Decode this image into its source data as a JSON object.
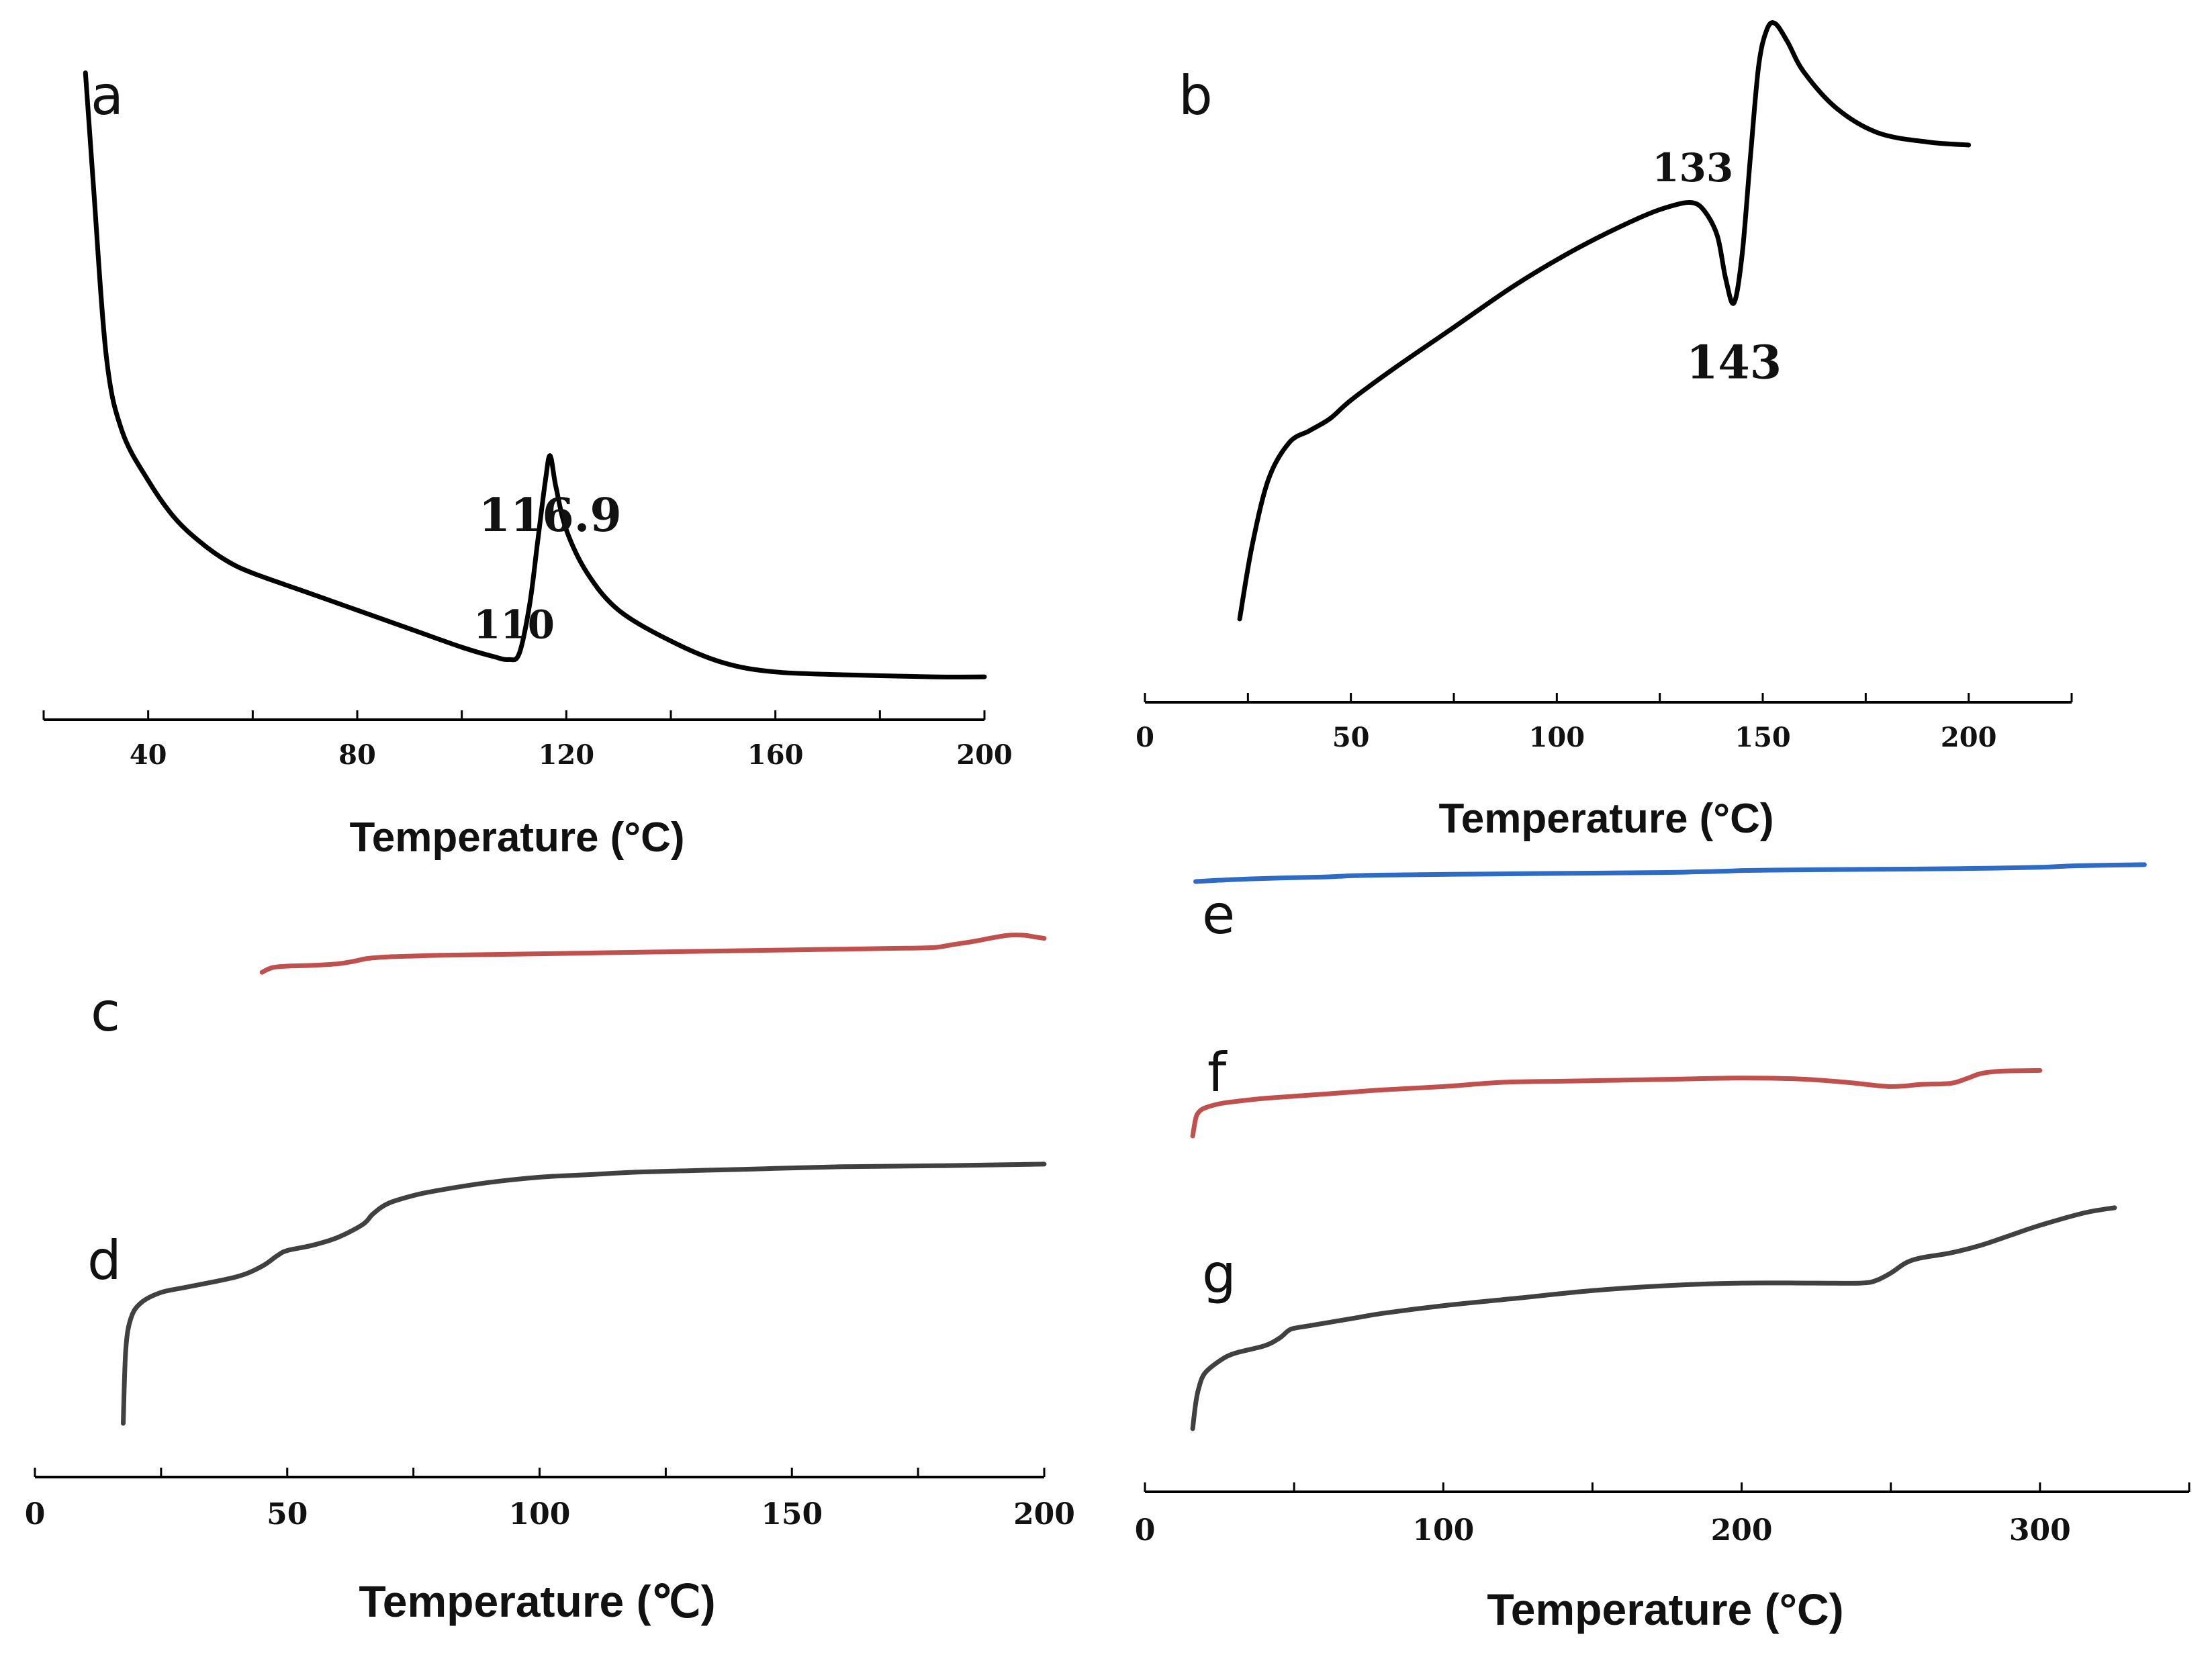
{
  "chart_data": [
    {
      "id": "a",
      "type": "line",
      "panel_label": "a",
      "xlabel": "Temperature (°C)",
      "xlim": [
        20,
        200
      ],
      "xticks": [
        "40",
        "80",
        "120",
        "160",
        "200"
      ],
      "tick_values": [
        40,
        80,
        120,
        160,
        200
      ],
      "minor_step": 20,
      "ylim": [
        0,
        100
      ],
      "series": [
        {
          "name": "a",
          "color": "#000000",
          "x": [
            28,
            29.5,
            32,
            35,
            40,
            45,
            50,
            55,
            60,
            70,
            80,
            90,
            100,
            106,
            109,
            111,
            113,
            114.5,
            116,
            116.9,
            118,
            120,
            124,
            130,
            140,
            150,
            160,
            175,
            190,
            200
          ],
          "y": [
            2,
            20,
            48,
            60,
            68,
            74,
            78,
            81,
            83,
            86,
            89,
            92,
            95,
            96.5,
            97,
            96,
            88,
            78,
            68,
            64,
            69,
            76,
            83,
            89,
            94,
            97.5,
            99,
            99.5,
            99.8,
            99.8
          ]
        }
      ],
      "annotations": [
        {
          "x": 110,
          "y": 97,
          "text": "110",
          "pos": "above"
        },
        {
          "x": 116.9,
          "y": 64,
          "text": "116.9",
          "pos": "below"
        }
      ]
    },
    {
      "id": "b",
      "type": "line",
      "panel_label": "b",
      "xlabel": "Temperature (°C)",
      "xlim": [
        0,
        225
      ],
      "xticks": [
        "0",
        "50",
        "100",
        "150",
        "200"
      ],
      "tick_values": [
        0,
        50,
        100,
        150,
        200
      ],
      "minor_step": 25,
      "ylim": [
        0,
        100
      ],
      "series": [
        {
          "name": "b",
          "color": "#000000",
          "x": [
            23,
            26,
            30,
            35,
            40,
            45,
            50,
            60,
            75,
            90,
            105,
            120,
            128,
            133,
            136,
            139,
            141,
            143,
            145,
            147,
            149,
            151,
            153,
            156,
            160,
            168,
            178,
            190,
            200
          ],
          "y": [
            2,
            14,
            25,
            31,
            33,
            35,
            38,
            43,
            50,
            57,
            63,
            68,
            70,
            70.5,
            69,
            65,
            58,
            54,
            62,
            78,
            93,
            99,
            100,
            97,
            92,
            86,
            82,
            80.5,
            80
          ]
        }
      ],
      "annotations": [
        {
          "x": 133,
          "y": 70.5,
          "text": "133",
          "pos": "above"
        },
        {
          "x": 143,
          "y": 54,
          "text": "143",
          "pos": "below"
        }
      ]
    },
    {
      "id": "cd",
      "type": "line",
      "xlabel": "Temperature (℃)",
      "xlim": [
        0,
        200
      ],
      "xticks": [
        "0",
        "50",
        "100",
        "150",
        "200"
      ],
      "tick_values": [
        0,
        50,
        100,
        150,
        200
      ],
      "minor_step": 25,
      "ylim": [
        0,
        100
      ],
      "panel_labels": [
        {
          "text": "c",
          "series": "c"
        },
        {
          "text": "d",
          "series": "d"
        }
      ],
      "series": [
        {
          "name": "c",
          "color": "#c0504d",
          "x": [
            45,
            47,
            50,
            55,
            60,
            63,
            66,
            70,
            75,
            80,
            90,
            100,
            110,
            120,
            130,
            140,
            150,
            160,
            170,
            178,
            182,
            186,
            190,
            193,
            196,
            198,
            200
          ],
          "y": [
            66,
            69,
            70,
            70.5,
            71.5,
            73,
            75,
            76,
            76.5,
            77,
            77.5,
            78,
            78.5,
            79,
            79.5,
            80,
            80.5,
            81,
            81.5,
            82,
            84,
            86,
            88.5,
            90,
            90,
            89,
            88
          ]
        },
        {
          "name": "d",
          "color": "#404040",
          "x": [
            17.5,
            18,
            19,
            21,
            25,
            30,
            40,
            45,
            48,
            50,
            55,
            60,
            65,
            67,
            70,
            75,
            80,
            90,
            100,
            110,
            120,
            140,
            160,
            180,
            200
          ],
          "y": [
            0,
            14,
            20,
            23,
            25,
            26,
            28,
            30,
            32,
            33,
            34,
            35.5,
            38,
            40,
            42,
            43.5,
            44.5,
            46,
            47,
            47.5,
            48,
            48.5,
            49,
            49.2,
            49.5
          ]
        }
      ]
    },
    {
      "id": "efg",
      "type": "line",
      "xlabel": "Temperature (°C)",
      "xlim": [
        0,
        350
      ],
      "xticks": [
        "0",
        "100",
        "200",
        "300"
      ],
      "tick_values": [
        0,
        100,
        200,
        300
      ],
      "minor_step": 50,
      "ylim": [
        0,
        100
      ],
      "panel_labels": [
        {
          "text": "e",
          "series": "e"
        },
        {
          "text": "f",
          "series": "f"
        },
        {
          "text": "g",
          "series": "g"
        }
      ],
      "series": [
        {
          "name": "e",
          "color": "#2e6bc4",
          "x": [
            17,
            25,
            35,
            50,
            60,
            65,
            70,
            80,
            100,
            125,
            150,
            175,
            185,
            195,
            200,
            210,
            225,
            250,
            275,
            300,
            310,
            320,
            335
          ],
          "y": [
            85.5,
            86.5,
            87.5,
            88.5,
            89,
            89.5,
            90,
            90.5,
            91,
            91.5,
            92,
            92.5,
            93,
            93.5,
            94,
            94.3,
            94.6,
            95,
            95.5,
            96.5,
            97.5,
            98,
            98.5
          ]
        },
        {
          "name": "f",
          "color": "#c0504d",
          "x": [
            16,
            17,
            18,
            20,
            25,
            30,
            40,
            50,
            60,
            70,
            80,
            100,
            120,
            140,
            160,
            180,
            200,
            220,
            235,
            245,
            250,
            255,
            260,
            270,
            275,
            280,
            285,
            290,
            300
          ],
          "y": [
            40,
            48,
            51,
            53,
            55,
            56,
            57.5,
            58.5,
            59.5,
            60.5,
            61.5,
            63,
            65,
            65.5,
            66,
            66.5,
            67,
            66.5,
            65,
            63.5,
            63,
            63.3,
            64,
            64.5,
            66.5,
            69,
            70,
            70.3,
            70.5
          ]
        },
        {
          "name": "g",
          "color": "#404040",
          "x": [
            16,
            17,
            18,
            20,
            25,
            30,
            40,
            45,
            48,
            50,
            55,
            60,
            70,
            80,
            100,
            125,
            150,
            175,
            200,
            225,
            240,
            245,
            250,
            255,
            260,
            270,
            280,
            290,
            300,
            315,
            325
          ],
          "y": [
            0,
            5,
            8,
            11,
            13.5,
            15,
            16.5,
            18,
            19.5,
            20,
            20.5,
            21,
            22,
            23,
            24.5,
            26,
            27.5,
            28.5,
            29,
            29,
            29,
            29.5,
            31,
            33,
            34,
            35,
            36.5,
            38.5,
            40.5,
            43,
            44
          ]
        }
      ]
    }
  ]
}
